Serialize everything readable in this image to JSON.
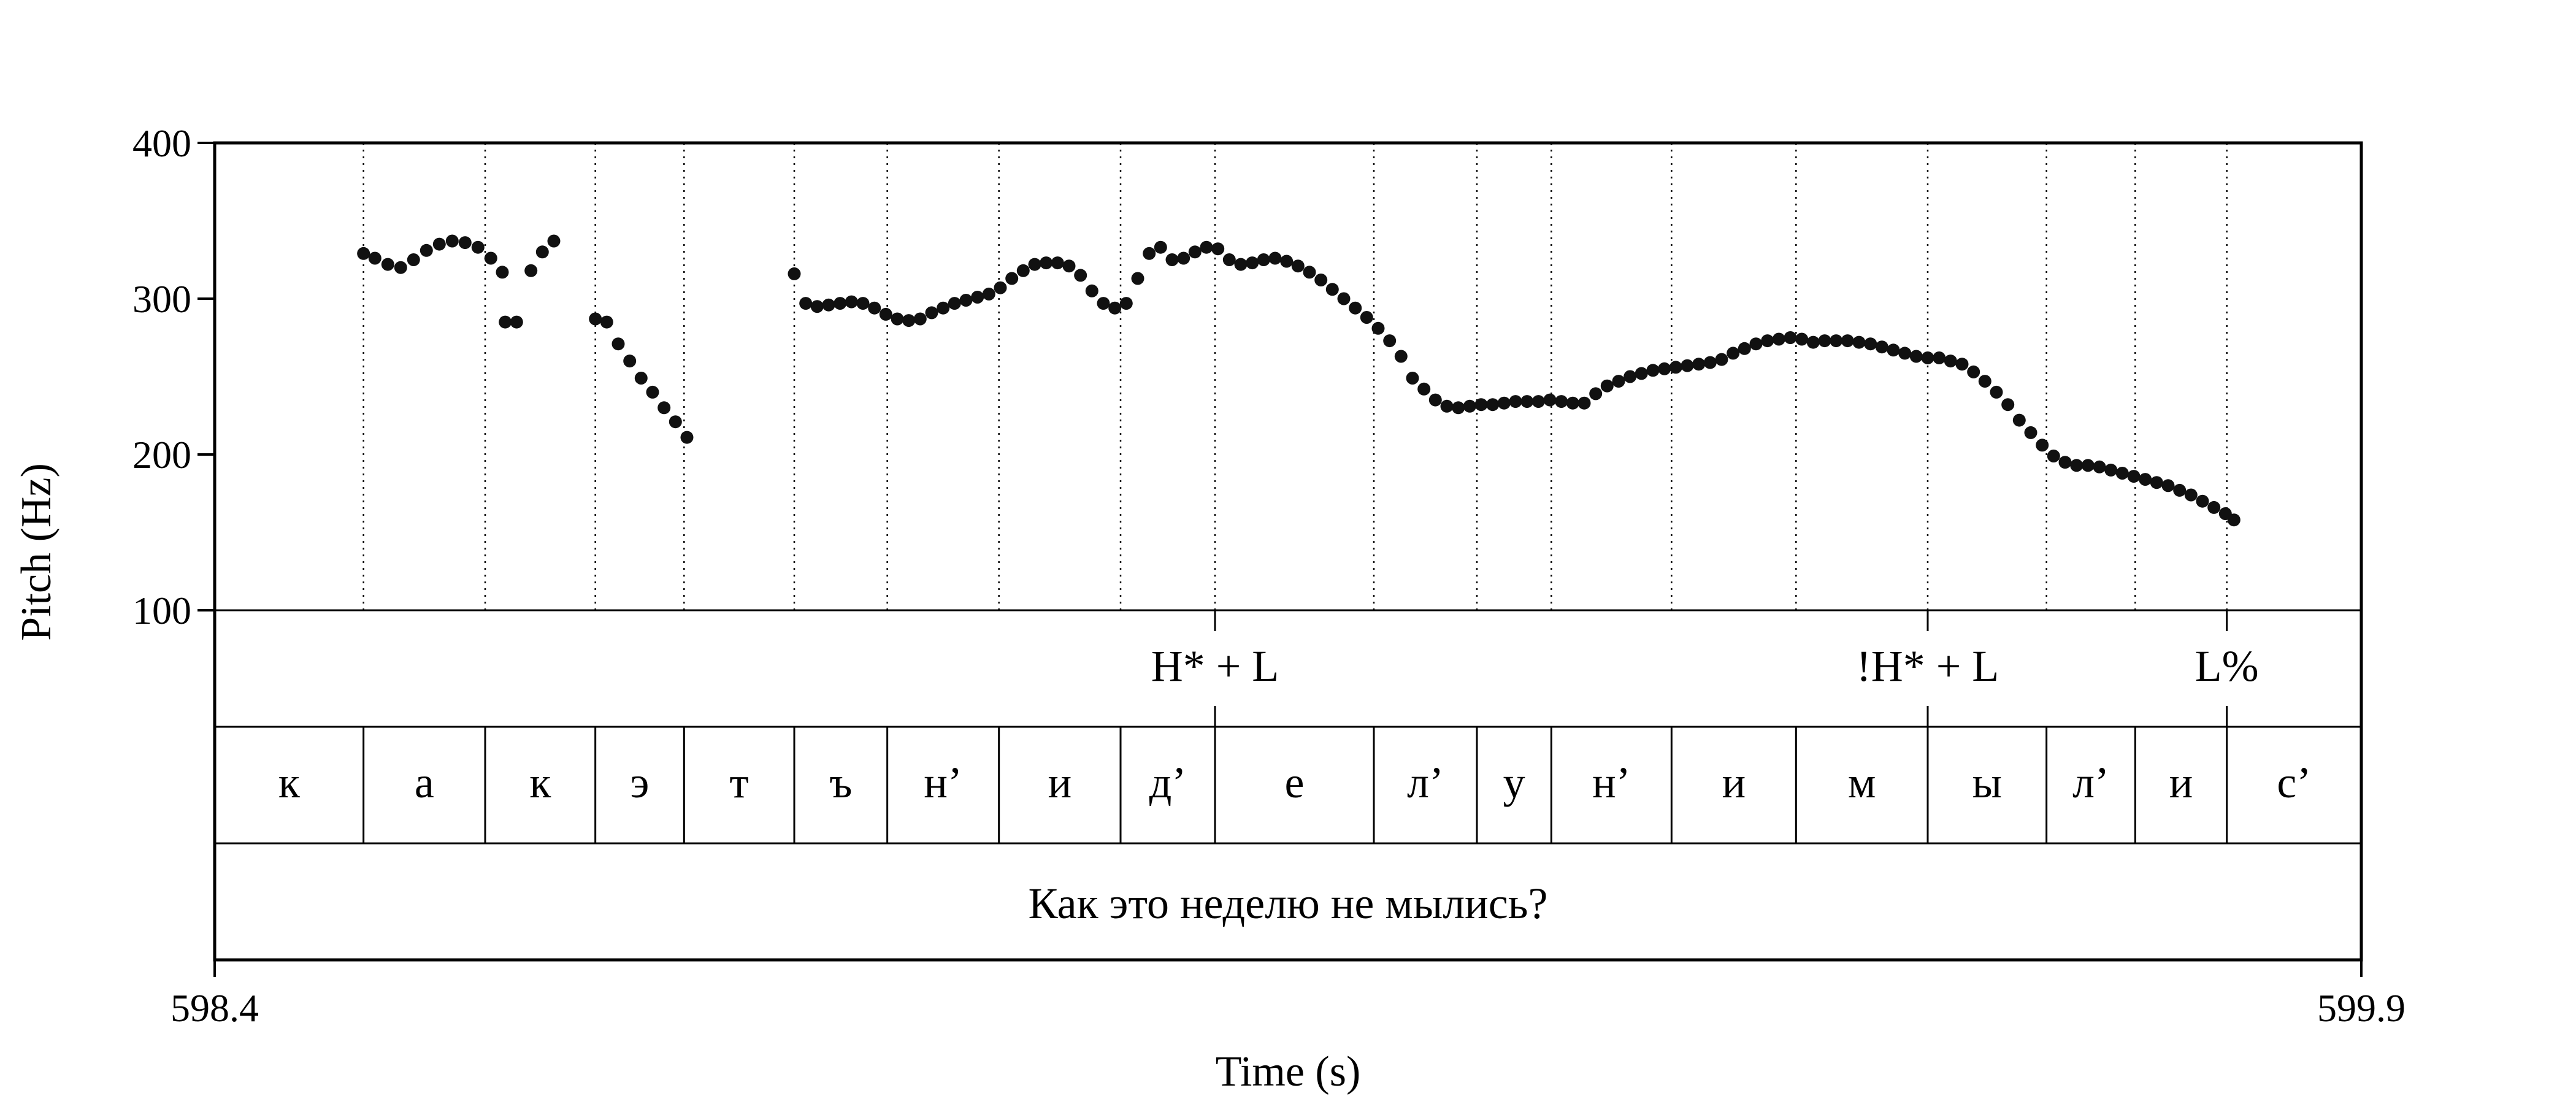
{
  "chart_data": {
    "type": "scatter",
    "title": "",
    "xlabel": "Time (s)",
    "ylabel": "Pitch (Hz)",
    "xlim": [
      598.4,
      599.9
    ],
    "ylim": [
      100,
      400
    ],
    "xticks": [
      "598.4",
      "599.9"
    ],
    "yticks": [
      "100",
      "200",
      "300",
      "400"
    ],
    "grid": false,
    "point_color": "#111111",
    "boundaries": [
      598.504,
      598.589,
      598.666,
      598.728,
      598.805,
      598.87,
      598.948,
      599.033,
      599.099,
      599.21,
      599.282,
      599.334,
      599.418,
      599.505,
      599.597,
      599.68,
      599.742,
      599.806
    ],
    "segments": [
      {
        "label": "к",
        "start": 598.4,
        "end": 598.504
      },
      {
        "label": "а",
        "start": 598.504,
        "end": 598.589
      },
      {
        "label": "к",
        "start": 598.589,
        "end": 598.666
      },
      {
        "label": "э",
        "start": 598.666,
        "end": 598.728
      },
      {
        "label": "т",
        "start": 598.728,
        "end": 598.805
      },
      {
        "label": "ъ",
        "start": 598.805,
        "end": 598.87
      },
      {
        "label": "н’",
        "start": 598.87,
        "end": 598.948
      },
      {
        "label": "и",
        "start": 598.948,
        "end": 599.033
      },
      {
        "label": "д’",
        "start": 599.033,
        "end": 599.099
      },
      {
        "label": "е",
        "start": 599.099,
        "end": 599.21
      },
      {
        "label": "л’",
        "start": 599.21,
        "end": 599.282
      },
      {
        "label": "у",
        "start": 599.282,
        "end": 599.334
      },
      {
        "label": "н’",
        "start": 599.334,
        "end": 599.418
      },
      {
        "label": "и",
        "start": 599.418,
        "end": 599.505
      },
      {
        "label": "м",
        "start": 599.505,
        "end": 599.597
      },
      {
        "label": "ы",
        "start": 599.597,
        "end": 599.68
      },
      {
        "label": "л’",
        "start": 599.68,
        "end": 599.742
      },
      {
        "label": "и",
        "start": 599.742,
        "end": 599.806
      },
      {
        "label": "с’",
        "start": 599.806,
        "end": 599.9
      }
    ],
    "tones": [
      {
        "label": "H* + L",
        "time": 599.099
      },
      {
        "label": "!H* + L",
        "time": 599.597
      },
      {
        "label": "L%",
        "time": 599.806
      }
    ],
    "sentence": "Как это неделю не мылись?",
    "pitch_points": [
      [
        598.504,
        329
      ],
      [
        598.512,
        326
      ],
      [
        598.521,
        322
      ],
      [
        598.53,
        320
      ],
      [
        598.539,
        325
      ],
      [
        598.548,
        331
      ],
      [
        598.557,
        335
      ],
      [
        598.566,
        337
      ],
      [
        598.575,
        336
      ],
      [
        598.584,
        333
      ],
      [
        598.593,
        326
      ],
      [
        598.601,
        317
      ],
      [
        598.603,
        285
      ],
      [
        598.611,
        285
      ],
      [
        598.621,
        318
      ],
      [
        598.629,
        330
      ],
      [
        598.637,
        337
      ],
      [
        598.666,
        287
      ],
      [
        598.674,
        285
      ],
      [
        598.682,
        271
      ],
      [
        598.69,
        260
      ],
      [
        598.698,
        249
      ],
      [
        598.706,
        240
      ],
      [
        598.714,
        230
      ],
      [
        598.722,
        221
      ],
      [
        598.73,
        211
      ],
      [
        598.805,
        316
      ],
      [
        598.813,
        297
      ],
      [
        598.821,
        295
      ],
      [
        598.829,
        296
      ],
      [
        598.837,
        297
      ],
      [
        598.845,
        298
      ],
      [
        598.853,
        297
      ],
      [
        598.861,
        294
      ],
      [
        598.869,
        290
      ],
      [
        598.877,
        287
      ],
      [
        598.885,
        286
      ],
      [
        598.893,
        287
      ],
      [
        598.901,
        291
      ],
      [
        598.909,
        294
      ],
      [
        598.917,
        297
      ],
      [
        598.925,
        299
      ],
      [
        598.933,
        301
      ],
      [
        598.941,
        303
      ],
      [
        598.949,
        307
      ],
      [
        598.957,
        313
      ],
      [
        598.965,
        318
      ],
      [
        598.973,
        322
      ],
      [
        598.981,
        323
      ],
      [
        598.989,
        323
      ],
      [
        598.997,
        321
      ],
      [
        599.005,
        315
      ],
      [
        599.013,
        305
      ],
      [
        599.021,
        297
      ],
      [
        599.029,
        294
      ],
      [
        599.037,
        297
      ],
      [
        599.045,
        313
      ],
      [
        599.053,
        329
      ],
      [
        599.061,
        333
      ],
      [
        599.069,
        325
      ],
      [
        599.077,
        326
      ],
      [
        599.085,
        330
      ],
      [
        599.093,
        333
      ],
      [
        599.101,
        332
      ],
      [
        599.109,
        325
      ],
      [
        599.117,
        322
      ],
      [
        599.125,
        323
      ],
      [
        599.133,
        325
      ],
      [
        599.141,
        326
      ],
      [
        599.149,
        324
      ],
      [
        599.157,
        321
      ],
      [
        599.165,
        317
      ],
      [
        599.173,
        312
      ],
      [
        599.181,
        306
      ],
      [
        599.189,
        300
      ],
      [
        599.197,
        294
      ],
      [
        599.205,
        288
      ],
      [
        599.213,
        281
      ],
      [
        599.221,
        273
      ],
      [
        599.229,
        263
      ],
      [
        599.237,
        249
      ],
      [
        599.245,
        242
      ],
      [
        599.253,
        235
      ],
      [
        599.261,
        231
      ],
      [
        599.269,
        230
      ],
      [
        599.277,
        231
      ],
      [
        599.285,
        232
      ],
      [
        599.293,
        232
      ],
      [
        599.301,
        233
      ],
      [
        599.309,
        234
      ],
      [
        599.317,
        234
      ],
      [
        599.325,
        234
      ],
      [
        599.333,
        235
      ],
      [
        599.341,
        234
      ],
      [
        599.349,
        233
      ],
      [
        599.357,
        233
      ],
      [
        599.365,
        239
      ],
      [
        599.373,
        244
      ],
      [
        599.381,
        247
      ],
      [
        599.389,
        250
      ],
      [
        599.397,
        252
      ],
      [
        599.405,
        254
      ],
      [
        599.413,
        255
      ],
      [
        599.421,
        256
      ],
      [
        599.429,
        257
      ],
      [
        599.437,
        258
      ],
      [
        599.445,
        259
      ],
      [
        599.453,
        261
      ],
      [
        599.461,
        265
      ],
      [
        599.469,
        268
      ],
      [
        599.477,
        271
      ],
      [
        599.485,
        273
      ],
      [
        599.493,
        274
      ],
      [
        599.501,
        275
      ],
      [
        599.509,
        274
      ],
      [
        599.517,
        272
      ],
      [
        599.525,
        273
      ],
      [
        599.533,
        273
      ],
      [
        599.541,
        273
      ],
      [
        599.549,
        272
      ],
      [
        599.557,
        271
      ],
      [
        599.565,
        269
      ],
      [
        599.573,
        267
      ],
      [
        599.581,
        265
      ],
      [
        599.589,
        263
      ],
      [
        599.597,
        262
      ],
      [
        599.605,
        262
      ],
      [
        599.613,
        260
      ],
      [
        599.621,
        258
      ],
      [
        599.629,
        253
      ],
      [
        599.637,
        247
      ],
      [
        599.645,
        240
      ],
      [
        599.653,
        232
      ],
      [
        599.661,
        222
      ],
      [
        599.669,
        214
      ],
      [
        599.677,
        206
      ],
      [
        599.685,
        199
      ],
      [
        599.693,
        195
      ],
      [
        599.701,
        193
      ],
      [
        599.709,
        193
      ],
      [
        599.717,
        192
      ],
      [
        599.725,
        190
      ],
      [
        599.733,
        188
      ],
      [
        599.741,
        186
      ],
      [
        599.749,
        184
      ],
      [
        599.757,
        182
      ],
      [
        599.765,
        180
      ],
      [
        599.773,
        177
      ],
      [
        599.781,
        174
      ],
      [
        599.789,
        170
      ],
      [
        599.797,
        166
      ],
      [
        599.805,
        162
      ],
      [
        599.811,
        158
      ]
    ]
  }
}
